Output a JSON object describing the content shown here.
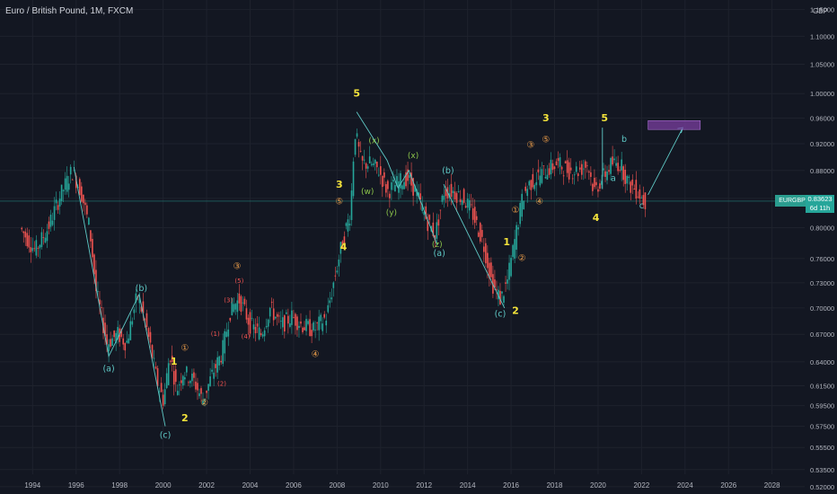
{
  "header": {
    "title": "Euro / British Pound, 1M, FXCM"
  },
  "currency": "GBP",
  "last_price": {
    "symbol": "EURGBP",
    "value": "0.83623",
    "countdown": "6d 11h"
  },
  "colors": {
    "bg": "#131722",
    "up": "#26a69a",
    "down": "#ef5350",
    "grid": "#1e222d",
    "text": "#b2b5be",
    "wave": "#5fc9c6",
    "label_yellow": "#f5e43b",
    "label_orange": "#f0a04b",
    "label_green": "#8bc34a",
    "label_red": "#ef5350",
    "target": "#7b3fa0"
  },
  "chart_data": {
    "type": "candlestick",
    "x_axis": {
      "range": [
        1992.5,
        2029.5
      ],
      "tick_labels": [
        "1994",
        "1996",
        "1998",
        "2000",
        "2002",
        "2004",
        "2006",
        "2008",
        "2010",
        "2012",
        "2014",
        "2016",
        "2018",
        "2020",
        "2022",
        "2024",
        "2026",
        "2028"
      ]
    },
    "y_axis": {
      "range": [
        0.5137,
        1.1685
      ],
      "scale": "log",
      "tick_labels": [
        "1.15000",
        "1.10000",
        "1.05000",
        "1.00000",
        "0.96000",
        "0.92000",
        "0.88000",
        "0.84000",
        "0.80000",
        "0.76000",
        "0.73000",
        "0.70000",
        "0.67000",
        "0.64000",
        "0.61500",
        "0.59500",
        "0.57500",
        "0.55500",
        "0.53500",
        "0.52000"
      ]
    },
    "price_path": [
      [
        1993.5,
        0.8
      ],
      [
        1994.2,
        0.77
      ],
      [
        1994.8,
        0.8
      ],
      [
        1995.3,
        0.84
      ],
      [
        1995.9,
        0.88
      ],
      [
        1996.3,
        0.85
      ],
      [
        1996.7,
        0.8
      ],
      [
        1997.0,
        0.72
      ],
      [
        1997.5,
        0.66
      ],
      [
        1998.0,
        0.67
      ],
      [
        1998.4,
        0.66
      ],
      [
        1998.9,
        0.715
      ],
      [
        1999.3,
        0.68
      ],
      [
        1999.8,
        0.62
      ],
      [
        2000.1,
        0.6
      ],
      [
        2000.4,
        0.65
      ],
      [
        2000.7,
        0.61
      ],
      [
        2001.0,
        0.63
      ],
      [
        2001.5,
        0.62
      ],
      [
        2001.9,
        0.6
      ],
      [
        2002.4,
        0.63
      ],
      [
        2002.8,
        0.65
      ],
      [
        2003.2,
        0.7
      ],
      [
        2003.6,
        0.71
      ],
      [
        2004.1,
        0.68
      ],
      [
        2004.6,
        0.67
      ],
      [
        2005.0,
        0.7
      ],
      [
        2005.5,
        0.68
      ],
      [
        2006.0,
        0.69
      ],
      [
        2006.5,
        0.68
      ],
      [
        2007.0,
        0.675
      ],
      [
        2007.6,
        0.69
      ],
      [
        2008.0,
        0.74
      ],
      [
        2008.4,
        0.79
      ],
      [
        2008.7,
        0.82
      ],
      [
        2008.9,
        0.94
      ],
      [
        2009.2,
        0.89
      ],
      [
        2009.6,
        0.89
      ],
      [
        2010.0,
        0.88
      ],
      [
        2010.4,
        0.85
      ],
      [
        2010.8,
        0.86
      ],
      [
        2011.3,
        0.87
      ],
      [
        2011.7,
        0.85
      ],
      [
        2012.2,
        0.81
      ],
      [
        2012.6,
        0.79
      ],
      [
        2013.0,
        0.85
      ],
      [
        2013.4,
        0.85
      ],
      [
        2013.9,
        0.84
      ],
      [
        2014.3,
        0.82
      ],
      [
        2014.8,
        0.78
      ],
      [
        2015.2,
        0.73
      ],
      [
        2015.6,
        0.71
      ],
      [
        2015.9,
        0.73
      ],
      [
        2016.3,
        0.79
      ],
      [
        2016.6,
        0.84
      ],
      [
        2016.9,
        0.86
      ],
      [
        2017.3,
        0.87
      ],
      [
        2017.7,
        0.88
      ],
      [
        2018.2,
        0.89
      ],
      [
        2018.7,
        0.88
      ],
      [
        2019.2,
        0.88
      ],
      [
        2019.6,
        0.89
      ],
      [
        2019.9,
        0.85
      ],
      [
        2020.3,
        0.87
      ],
      [
        2020.7,
        0.89
      ],
      [
        2021.1,
        0.89
      ],
      [
        2021.5,
        0.86
      ],
      [
        2021.9,
        0.85
      ],
      [
        2022.2,
        0.836
      ]
    ],
    "waves": [
      {
        "name": "a-b-c decline",
        "points": [
          [
            1995.9,
            0.885
          ],
          [
            1997.5,
            0.646
          ],
          [
            1998.9,
            0.716
          ],
          [
            2000.1,
            0.575
          ]
        ]
      },
      {
        "name": "w-x-y-x-a",
        "points": [
          [
            2008.9,
            0.97
          ],
          [
            2010.3,
            0.895
          ],
          [
            2010.8,
            0.855
          ],
          [
            2011.3,
            0.88
          ],
          [
            2012.6,
            0.778
          ]
        ]
      },
      {
        "name": "b-c",
        "points": [
          [
            2012.9,
            0.86
          ],
          [
            2015.7,
            0.7
          ]
        ]
      },
      {
        "name": "projection",
        "points": [
          [
            2022.3,
            0.845
          ],
          [
            2023.9,
            0.945
          ]
        ]
      },
      {
        "name": "b spike",
        "points": [
          [
            2020.2,
            0.945
          ],
          [
            2020.2,
            0.853
          ]
        ]
      }
    ],
    "target_zone": {
      "x": [
        2022.3,
        2024.7
      ],
      "y": [
        0.942,
        0.956
      ]
    },
    "annotations": [
      {
        "text": "5",
        "x": 2008.9,
        "y": 0.995,
        "style": "yellow"
      },
      {
        "text": "3",
        "x": 2008.1,
        "y": 0.855,
        "style": "yellow"
      },
      {
        "text": "4",
        "x": 2008.3,
        "y": 0.771,
        "style": "yellow"
      },
      {
        "text": "1",
        "x": 2000.5,
        "y": 0.637,
        "style": "yellow"
      },
      {
        "text": "2",
        "x": 2001.0,
        "y": 0.58,
        "style": "yellow"
      },
      {
        "text": "1",
        "x": 2015.8,
        "y": 0.777,
        "style": "yellow"
      },
      {
        "text": "2",
        "x": 2016.2,
        "y": 0.693,
        "style": "yellow"
      },
      {
        "text": "3",
        "x": 2017.6,
        "y": 0.955,
        "style": "yellow"
      },
      {
        "text": "5",
        "x": 2020.3,
        "y": 0.955,
        "style": "yellow"
      },
      {
        "text": "4",
        "x": 2019.9,
        "y": 0.809,
        "style": "yellow"
      },
      {
        "text": "(a)",
        "x": 1997.5,
        "y": 0.63,
        "style": "teal"
      },
      {
        "text": "(b)",
        "x": 1999.0,
        "y": 0.72,
        "style": "teal"
      },
      {
        "text": "(c)",
        "x": 2000.1,
        "y": 0.564,
        "style": "teal"
      },
      {
        "text": "(a)",
        "x": 2012.7,
        "y": 0.763,
        "style": "teal"
      },
      {
        "text": "(b)",
        "x": 2013.1,
        "y": 0.876,
        "style": "teal"
      },
      {
        "text": "(c)",
        "x": 2015.5,
        "y": 0.69,
        "style": "teal"
      },
      {
        "text": "a",
        "x": 2020.7,
        "y": 0.865,
        "style": "teal"
      },
      {
        "text": "b",
        "x": 2021.2,
        "y": 0.923,
        "style": "teal"
      },
      {
        "text": "c",
        "x": 2022.0,
        "y": 0.826,
        "style": "teal"
      },
      {
        "text": "①",
        "x": 2001.0,
        "y": 0.652,
        "style": "orange"
      },
      {
        "text": "②",
        "x": 2001.9,
        "y": 0.595,
        "style": "orange"
      },
      {
        "text": "③",
        "x": 2003.4,
        "y": 0.747,
        "style": "orange"
      },
      {
        "text": "④",
        "x": 2007.0,
        "y": 0.645,
        "style": "orange"
      },
      {
        "text": "⑤",
        "x": 2008.1,
        "y": 0.832,
        "style": "orange"
      },
      {
        "text": "①",
        "x": 2016.2,
        "y": 0.82,
        "style": "orange"
      },
      {
        "text": "②",
        "x": 2016.5,
        "y": 0.757,
        "style": "orange"
      },
      {
        "text": "③",
        "x": 2016.9,
        "y": 0.914,
        "style": "orange"
      },
      {
        "text": "④",
        "x": 2017.3,
        "y": 0.832,
        "style": "orange"
      },
      {
        "text": "⑤",
        "x": 2017.6,
        "y": 0.922,
        "style": "orange"
      },
      {
        "text": "(x)",
        "x": 2009.7,
        "y": 0.921,
        "style": "green"
      },
      {
        "text": "(w)",
        "x": 2009.4,
        "y": 0.846,
        "style": "green"
      },
      {
        "text": "(y)",
        "x": 2010.5,
        "y": 0.817,
        "style": "green"
      },
      {
        "text": "(x)",
        "x": 2011.5,
        "y": 0.898,
        "style": "green"
      },
      {
        "text": "(z)",
        "x": 2012.6,
        "y": 0.775,
        "style": "green"
      },
      {
        "text": "(1)",
        "x": 2002.4,
        "y": 0.668,
        "style": "red"
      },
      {
        "text": "(2)",
        "x": 2002.7,
        "y": 0.615,
        "style": "red"
      },
      {
        "text": "(3)",
        "x": 2003.0,
        "y": 0.707,
        "style": "red"
      },
      {
        "text": "(4)",
        "x": 2003.8,
        "y": 0.665,
        "style": "red"
      },
      {
        "text": "(5)",
        "x": 2003.5,
        "y": 0.73,
        "style": "red"
      }
    ]
  }
}
